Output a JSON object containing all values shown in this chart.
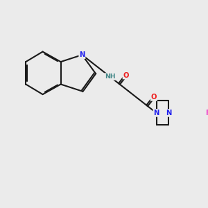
{
  "bg_color": "#ebebeb",
  "bond_color": "#1a1a1a",
  "N_color": "#2020ee",
  "O_color": "#ee2020",
  "F_color": "#ee44cc",
  "H_color": "#448888",
  "font_size_atom": 7.2,
  "bond_width": 1.5,
  "dbl_off": 0.055,
  "xlim": [
    0,
    10
  ],
  "ylim": [
    0,
    10
  ]
}
